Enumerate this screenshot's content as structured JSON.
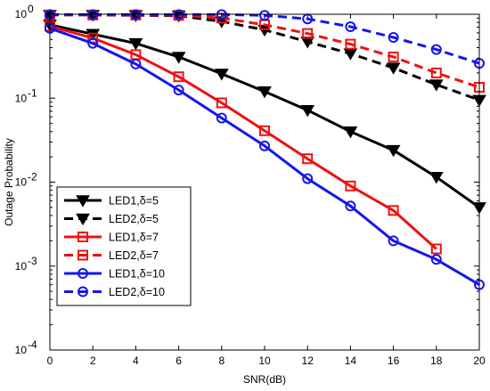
{
  "chart_data": {
    "type": "line",
    "title": "",
    "xlabel": "SNR(dB)",
    "ylabel": "Outage Probability",
    "xlim": [
      0,
      20
    ],
    "ylim": [
      0.0001,
      1
    ],
    "yscale": "log",
    "grid": false,
    "x_ticks": [
      "0",
      "2",
      "4",
      "6",
      "8",
      "10",
      "12",
      "14",
      "16",
      "18",
      "20"
    ],
    "y_ticks": [
      {
        "base": "10",
        "exp": "-4"
      },
      {
        "base": "10",
        "exp": "-3"
      },
      {
        "base": "10",
        "exp": "-2"
      },
      {
        "base": "10",
        "exp": "-1"
      },
      {
        "base": "10",
        "exp": "0"
      }
    ],
    "legend_position": "lower-left",
    "x": [
      0,
      2,
      4,
      6,
      8,
      10,
      12,
      14,
      16,
      18,
      20
    ],
    "series": [
      {
        "name": "LED1,δ=5",
        "color": "#000000",
        "dash": "solid",
        "marker": "triangle-down",
        "values": [
          0.75,
          0.58,
          0.45,
          0.31,
          0.195,
          0.12,
          0.072,
          0.04,
          0.024,
          0.0115,
          0.005
        ]
      },
      {
        "name": "LED2,δ=5",
        "color": "#000000",
        "dash": "dashed",
        "marker": "triangle-down",
        "values": [
          0.98,
          0.98,
          0.97,
          0.96,
          0.82,
          0.65,
          0.47,
          0.34,
          0.23,
          0.145,
          0.095
        ]
      },
      {
        "name": "LED1,δ=7",
        "color": "#ee1111",
        "dash": "solid",
        "marker": "square",
        "values": [
          0.72,
          0.52,
          0.33,
          0.18,
          0.088,
          0.041,
          0.019,
          0.009,
          0.0046,
          0.0016,
          null
        ]
      },
      {
        "name": "LED2,δ=7",
        "color": "#ee1111",
        "dash": "dashed",
        "marker": "square",
        "values": [
          0.98,
          0.98,
          0.98,
          0.97,
          0.9,
          0.75,
          0.59,
          0.44,
          0.31,
          0.2,
          0.135
        ]
      },
      {
        "name": "LED1,δ=10",
        "color": "#1515ee",
        "dash": "solid",
        "marker": "circle",
        "values": [
          0.68,
          0.45,
          0.255,
          0.125,
          0.058,
          0.027,
          0.011,
          0.0052,
          0.002,
          0.0012,
          0.0006
        ]
      },
      {
        "name": "LED2,δ=10",
        "color": "#1515ee",
        "dash": "dashed",
        "marker": "circle",
        "values": [
          0.99,
          0.99,
          0.99,
          0.99,
          0.99,
          0.97,
          0.88,
          0.71,
          0.53,
          0.38,
          0.26
        ]
      }
    ]
  }
}
